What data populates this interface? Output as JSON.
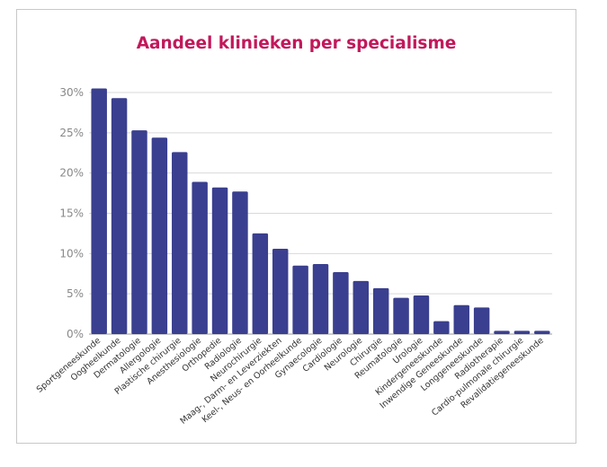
{
  "chart_data": {
    "type": "bar",
    "title": "Aandeel klinieken per specialisme",
    "xlabel": "",
    "ylabel": "",
    "ylim": [
      0,
      30
    ],
    "y_ticks": [
      "0%",
      "5%",
      "10%",
      "15%",
      "20%",
      "25%",
      "30%"
    ],
    "grid": true,
    "legend": "none",
    "bar_color": "#3a3f8f",
    "title_color": "#c2185b",
    "categories": [
      "Sportgeneeskunde",
      "Oogheelkunde",
      "Dermatologie",
      "Allergologie",
      "Plastische chirurgie",
      "Anesthesiologie",
      "Orthopedie",
      "Radiologie",
      "Neurochirurgie",
      "Maag-, Darm- en Leverziekten",
      "Keel-, Neus- en Oorheelkunde",
      "Gynaecologie",
      "Cardiologie",
      "Neurologie",
      "Chirurgie",
      "Reumatologie",
      "Urologie",
      "Kindergeneeskunde",
      "Inwendige Geneeskunde",
      "Longgeneeskunde",
      "Radiotherapie",
      "Cardio-pulmonale chirurgie",
      "Revalidatiegeneeskunde"
    ],
    "values": [
      30.5,
      29.3,
      25.3,
      24.4,
      22.6,
      18.9,
      18.2,
      17.7,
      12.5,
      10.6,
      8.5,
      8.7,
      7.7,
      6.6,
      5.7,
      4.5,
      4.8,
      1.6,
      3.6,
      3.3,
      0.4,
      0.4,
      0.4
    ]
  }
}
